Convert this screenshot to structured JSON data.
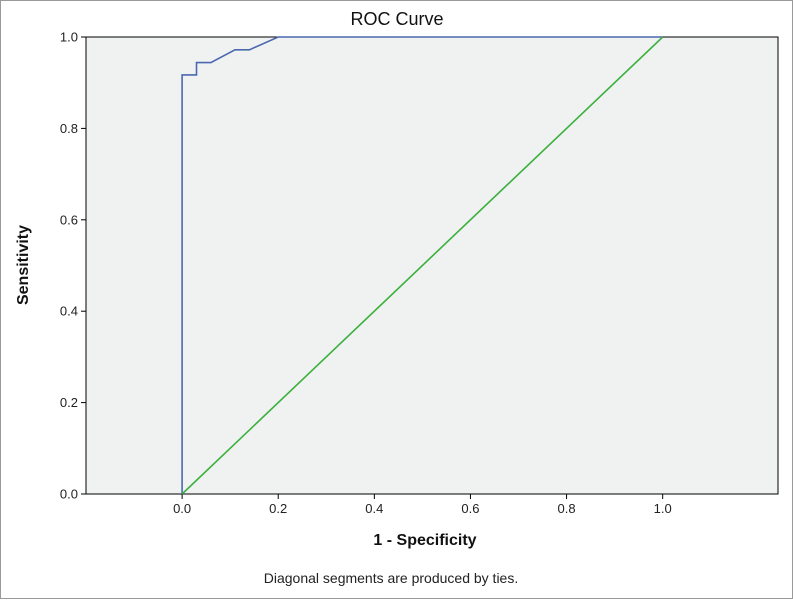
{
  "chart_data": {
    "type": "line",
    "title": "ROC Curve",
    "xlabel": "1 - Specificity",
    "ylabel": "Sensitivity",
    "footnote": "Diagonal segments are produced by ties.",
    "xlim": [
      -0.2,
      1.24
    ],
    "ylim": [
      0.0,
      1.0
    ],
    "x_ticks": [
      "0.0",
      "0.2",
      "0.4",
      "0.6",
      "0.8",
      "1.0"
    ],
    "y_ticks": [
      "0.0",
      "0.2",
      "0.4",
      "0.6",
      "0.8",
      "1.0"
    ],
    "grid": false,
    "legend": "none",
    "series": [
      {
        "color": "#4a68b0",
        "x": [
          0.0,
          0.0,
          0.0,
          0.03,
          0.03,
          0.06,
          0.11,
          0.14,
          0.2,
          1.0
        ],
        "y": [
          0.0,
          0.917,
          0.917,
          0.917,
          0.944,
          0.944,
          0.972,
          0.972,
          1.0,
          1.0
        ]
      },
      {
        "color": "#3cb03c",
        "x": [
          0.0,
          1.0
        ],
        "y": [
          0.0,
          1.0
        ]
      }
    ],
    "plot_background": "#f0f2f2"
  }
}
